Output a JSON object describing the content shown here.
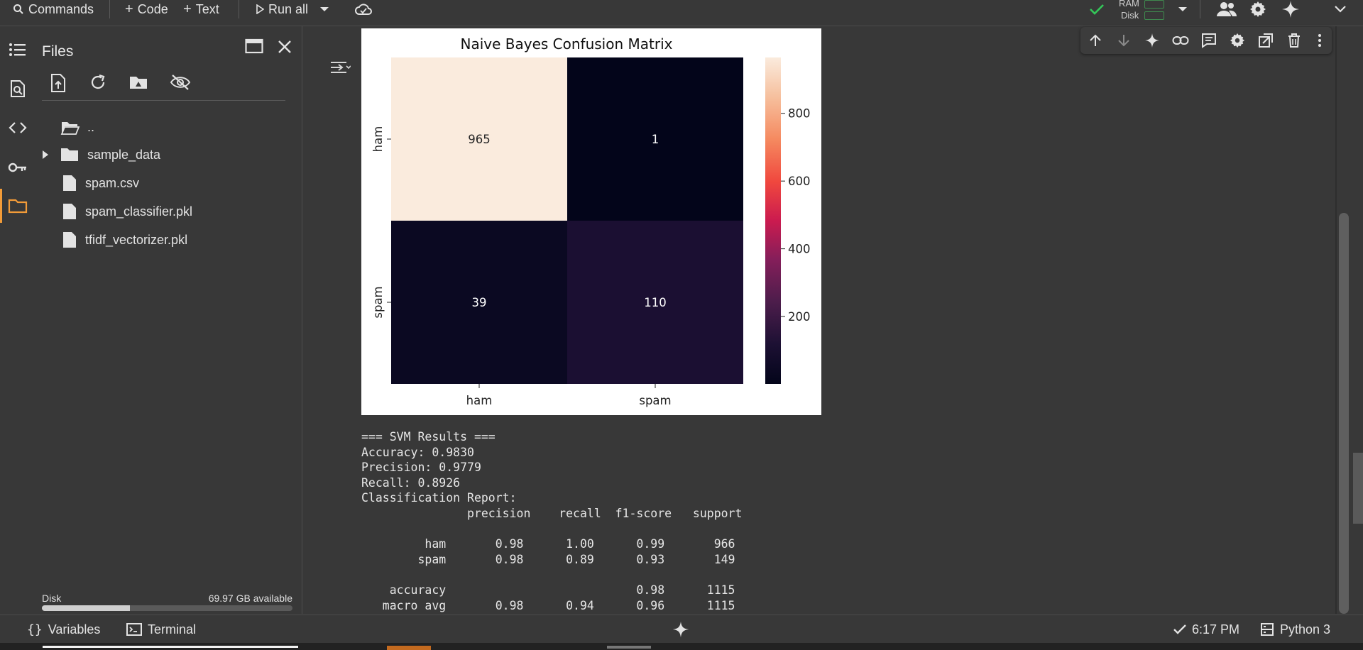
{
  "toolbar": {
    "commands": "Commands",
    "code": "Code",
    "text": "Text",
    "run_all": "Run all",
    "ram": "RAM",
    "disk": "Disk"
  },
  "files_panel": {
    "title": "Files",
    "items": [
      {
        "name": "..",
        "type": "folder-open"
      },
      {
        "name": "sample_data",
        "type": "folder"
      },
      {
        "name": "spam.csv",
        "type": "file"
      },
      {
        "name": "spam_classifier.pkl",
        "type": "file"
      },
      {
        "name": "tfidf_vectorizer.pkl",
        "type": "file"
      }
    ],
    "disk_label": "Disk",
    "disk_available": "69.97 GB available",
    "disk_used_fraction": 0.35
  },
  "chart_data": {
    "type": "heatmap",
    "title": "Naive Bayes Confusion Matrix",
    "x_categories": [
      "ham",
      "spam"
    ],
    "y_categories": [
      "ham",
      "spam"
    ],
    "values": [
      [
        965,
        1
      ],
      [
        39,
        110
      ]
    ],
    "colorbar": {
      "range": [
        1,
        965
      ],
      "ticks": [
        200,
        400,
        600,
        800
      ]
    },
    "colormap": "rocket"
  },
  "svm_results": {
    "lines": [
      "=== SVM Results ===",
      "Accuracy: 0.9830",
      "Precision: 0.9779",
      "Recall: 0.8926",
      "Classification Report:",
      "               precision    recall  f1-score   support",
      "",
      "         ham       0.98      1.00      0.99       966",
      "        spam       0.98      0.89      0.93       149",
      "",
      "    accuracy                           0.98      1115",
      "   macro avg       0.98      0.94      0.96      1115"
    ]
  },
  "status_bar": {
    "variables": "Variables",
    "terminal": "Terminal",
    "time": "6:17 PM",
    "runtime": "Python 3"
  },
  "colors": {
    "background": "#383838",
    "accent_orange": "#f29b38",
    "connected_green": "#34c759"
  }
}
